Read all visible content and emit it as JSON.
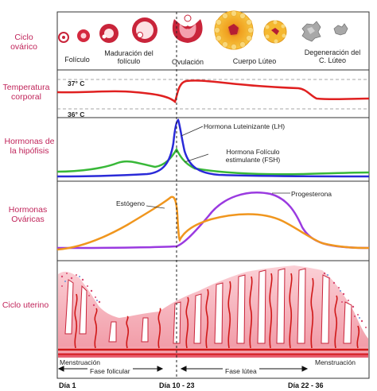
{
  "rows": {
    "ovarian": "Ciclo ovárico",
    "temperature": "Temperatura corporal",
    "pituitary": "Hormonas de la hipófisis",
    "ovarian_hormones": "Hormonas Ováricas",
    "uterine": "Ciclo uterino"
  },
  "ovary_stages": {
    "follicle": "Folículo",
    "maturation": "Maduración del folículo",
    "ovulation": "Ovulación",
    "corpus_luteum": "Cuerpo Lúteo",
    "degeneration": "Degeneración del C. Lúteo"
  },
  "temperature_marks": {
    "high": "37° C",
    "low": "36° C"
  },
  "pituitary_labels": {
    "lh": "Hormona Luteinizante (LH)",
    "fsh": "Hormona Folículo estimulante (FSH)"
  },
  "ovarian_hormone_labels": {
    "estrogen": "Estógeno",
    "progesterone": "Progesterona"
  },
  "phases": {
    "menstruation_left": "Menstruación",
    "menstruation_right": "Menstruación",
    "follicular": "Fase folicular",
    "luteal": "Fase lútea"
  },
  "days": {
    "d1": "Día 1",
    "d10": "Día 10 - 23",
    "d22": "Día 22 - 36"
  },
  "colors": {
    "row_label": "#c0245a",
    "temperature": "#e02020",
    "lh": "#2a2ad8",
    "fsh": "#38b838",
    "estrogen": "#f0961e",
    "progesterone": "#9a3ae0",
    "endometrium": "#f7b8c0"
  }
}
